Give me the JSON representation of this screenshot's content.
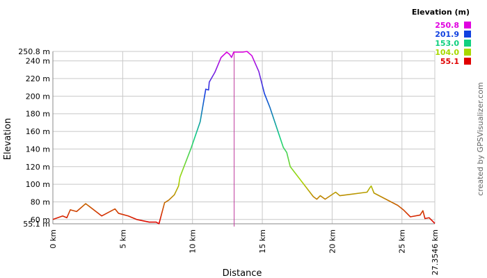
{
  "chart_data": {
    "type": "line",
    "x_label": "Distance",
    "y_label": "Elevation",
    "credit": "created by GPSVisualizer.com",
    "grid": true,
    "x": [
      0,
      0.7,
      1.0,
      1.25,
      1.7,
      2.35,
      3.5,
      4.45,
      4.7,
      5.4,
      6.0,
      6.9,
      7.4,
      7.6,
      8.0,
      8.3,
      8.7,
      9.0,
      9.1,
      9.9,
      10.55,
      10.95,
      11.15,
      11.2,
      11.6,
      12.05,
      12.45,
      12.65,
      12.8,
      12.95,
      13.6,
      13.9,
      14.25,
      14.75,
      15.15,
      15.55,
      16.5,
      16.75,
      17.0,
      18.65,
      18.9,
      19.15,
      19.5,
      20.25,
      20.55,
      22.5,
      22.7,
      22.8,
      23.0,
      24.7,
      25.1,
      25.6,
      26.3,
      26.5,
      26.65,
      26.95,
      27.3546
    ],
    "values": [
      60,
      64,
      62,
      71,
      69,
      78,
      64,
      72,
      67,
      64,
      60,
      57,
      57,
      55.1,
      79,
      82,
      88,
      98,
      108,
      141,
      171,
      208,
      207,
      216,
      227,
      244,
      250,
      247.5,
      244,
      250,
      250,
      250.8,
      246,
      228,
      203,
      187,
      142,
      136,
      120,
      86,
      83,
      87,
      83,
      91,
      87,
      91,
      96,
      98,
      90,
      76,
      71,
      63,
      65,
      70,
      61,
      62,
      55.5
    ],
    "cursor_x": 12.98,
    "cursor_color": "#c040a0",
    "xlim": [
      0,
      27.3546
    ],
    "ylim": [
      55.1,
      250.8
    ],
    "xticks": [
      {
        "value": 0,
        "label": "0 km"
      },
      {
        "value": 5,
        "label": "5 km"
      },
      {
        "value": 10,
        "label": "10 km"
      },
      {
        "value": 15,
        "label": "15 km"
      },
      {
        "value": 20,
        "label": "20 km"
      },
      {
        "value": 25,
        "label": "25 km"
      },
      {
        "value": 27.3546,
        "label": "27.3546 km"
      }
    ],
    "yticks": [
      {
        "value": 55.1,
        "label": "55.1 m"
      },
      {
        "value": 60,
        "label": "60 m"
      },
      {
        "value": 80,
        "label": "80 m"
      },
      {
        "value": 100,
        "label": "100 m"
      },
      {
        "value": 120,
        "label": "120 m"
      },
      {
        "value": 140,
        "label": "140 m"
      },
      {
        "value": 160,
        "label": "160 m"
      },
      {
        "value": 180,
        "label": "180 m"
      },
      {
        "value": 200,
        "label": "200 m"
      },
      {
        "value": 220,
        "label": "220 m"
      },
      {
        "value": 240,
        "label": "240 m"
      },
      {
        "value": 250.8,
        "label": "250.8 m"
      }
    ],
    "color_scale": {
      "title": "Elevation (m)",
      "stops": [
        {
          "value": 250.8,
          "label": "250.8",
          "color": "#e000e0"
        },
        {
          "value": 201.9,
          "label": "201.9",
          "color": "#1040e0"
        },
        {
          "value": 153.0,
          "label": "153.0",
          "color": "#10d080"
        },
        {
          "value": 104.0,
          "label": "104.0",
          "color": "#a8d800"
        },
        {
          "value": 55.1,
          "label": "55.1",
          "color": "#e00000"
        }
      ]
    }
  }
}
